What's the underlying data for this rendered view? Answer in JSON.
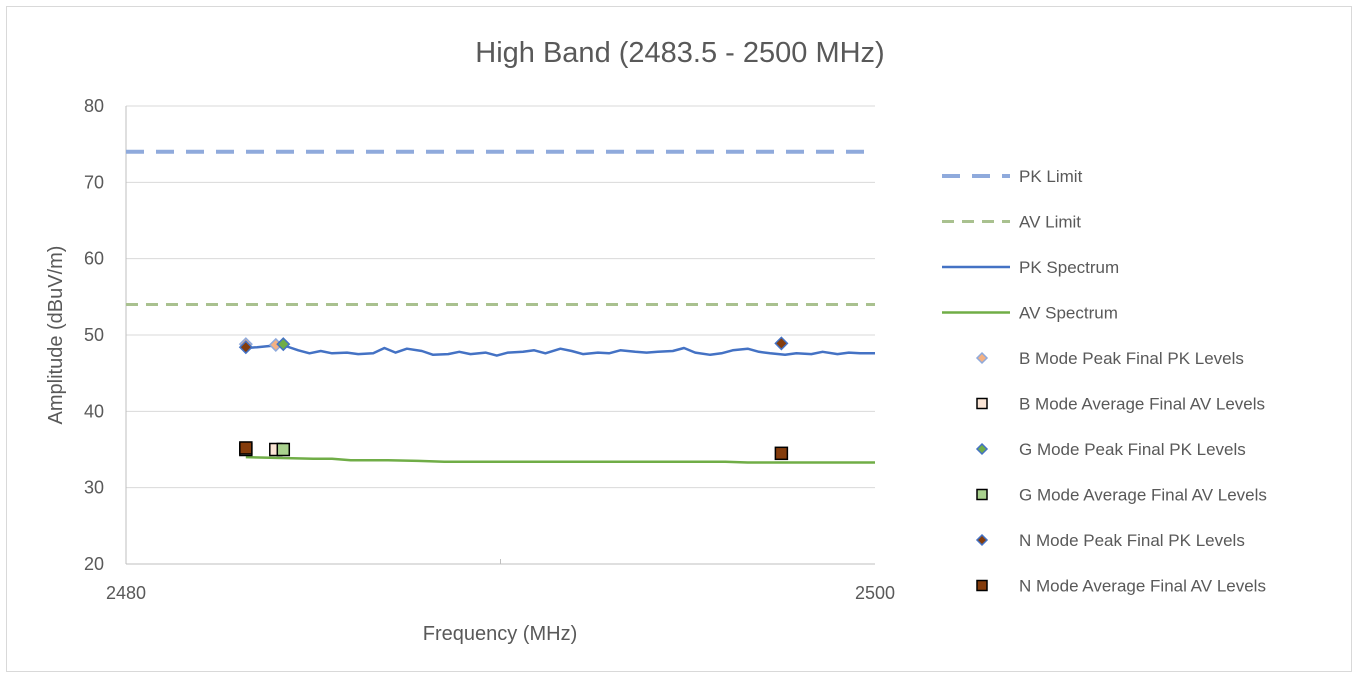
{
  "chart_data": {
    "type": "line",
    "title": "High Band (2483.5 - 2500 MHz)",
    "xlabel": "Frequency (MHz)",
    "ylabel": "Amplitude (dBuV/m)",
    "xlim": [
      2480,
      2500
    ],
    "ylim": [
      20,
      80
    ],
    "x_ticks": [
      "2480",
      "2500"
    ],
    "y_ticks": [
      "20",
      "30",
      "40",
      "50",
      "60",
      "70",
      "80"
    ],
    "grid": "horizontal",
    "legend_position": "right",
    "colors": {
      "pk_limit": "#8faadc",
      "av_limit": "#a9c18f",
      "pk_spectrum": "#4472c4",
      "av_spectrum": "#70ad47",
      "b_peak": "#f4b183",
      "b_avg": "#fbe5d6",
      "g_peak": "#70ad47",
      "g_avg": "#a9d18e",
      "n_peak": "#843c0c",
      "n_avg": "#843c0c"
    },
    "series": [
      {
        "name": "PK Limit",
        "kind": "dashed-line",
        "x": [
          2480,
          2500
        ],
        "y": [
          74,
          74
        ]
      },
      {
        "name": "AV Limit",
        "kind": "dashed-line",
        "x": [
          2480,
          2500
        ],
        "y": [
          54,
          54
        ]
      },
      {
        "name": "PK Spectrum",
        "kind": "line",
        "x": [
          2483.2,
          2483.5,
          2483.9,
          2484.3,
          2484.6,
          2484.9,
          2485.2,
          2485.5,
          2485.9,
          2486.2,
          2486.6,
          2486.9,
          2487.2,
          2487.5,
          2487.9,
          2488.2,
          2488.6,
          2488.9,
          2489.2,
          2489.6,
          2489.9,
          2490.2,
          2490.6,
          2490.9,
          2491.2,
          2491.6,
          2491.9,
          2492.2,
          2492.6,
          2492.9,
          2493.2,
          2493.6,
          2493.9,
          2494.2,
          2494.6,
          2494.9,
          2495.2,
          2495.6,
          2495.9,
          2496.2,
          2496.6,
          2496.9,
          2497.2,
          2497.6,
          2497.9,
          2498.3,
          2498.6,
          2499.0,
          2499.3,
          2499.6,
          2500.0
        ],
        "y": [
          48.3,
          48.4,
          48.6,
          48.5,
          48.0,
          47.6,
          47.9,
          47.6,
          47.7,
          47.5,
          47.6,
          48.3,
          47.7,
          48.2,
          47.9,
          47.4,
          47.5,
          47.8,
          47.5,
          47.7,
          47.3,
          47.7,
          47.8,
          48.0,
          47.6,
          48.2,
          47.9,
          47.5,
          47.7,
          47.6,
          48.0,
          47.8,
          47.7,
          47.8,
          47.9,
          48.3,
          47.7,
          47.4,
          47.6,
          48.0,
          48.2,
          47.8,
          47.6,
          47.4,
          47.6,
          47.5,
          47.8,
          47.5,
          47.7,
          47.6,
          47.6
        ]
      },
      {
        "name": "AV Spectrum",
        "kind": "line",
        "x": [
          2483.2,
          2484.0,
          2485.0,
          2485.5,
          2486.0,
          2487.0,
          2487.8,
          2488.5,
          2490.0,
          2492.0,
          2494.0,
          2496.0,
          2496.6,
          2497.0,
          2498.0,
          2499.0,
          2500.0
        ],
        "y": [
          34.0,
          33.9,
          33.8,
          33.8,
          33.6,
          33.6,
          33.5,
          33.4,
          33.4,
          33.4,
          33.4,
          33.4,
          33.3,
          33.3,
          33.3,
          33.3,
          33.3
        ]
      },
      {
        "name": "B Mode Peak Final PK Levels",
        "kind": "diamond",
        "x": [
          2483.2,
          2484.0
        ],
        "y": [
          48.8,
          48.7
        ]
      },
      {
        "name": "B Mode Average Final AV Levels",
        "kind": "square",
        "x": [
          2483.2,
          2484.0
        ],
        "y": [
          35.0,
          35.0
        ]
      },
      {
        "name": "G Mode Peak Final PK Levels",
        "kind": "diamond",
        "x": [
          2484.2
        ],
        "y": [
          48.8
        ]
      },
      {
        "name": "G Mode Average Final AV Levels",
        "kind": "square",
        "x": [
          2484.2
        ],
        "y": [
          35.0
        ]
      },
      {
        "name": "N Mode Peak Final PK Levels",
        "kind": "diamond",
        "x": [
          2483.2,
          2497.5
        ],
        "y": [
          48.4,
          48.9
        ]
      },
      {
        "name": "N Mode Average Final AV Levels",
        "kind": "square",
        "x": [
          2483.2,
          2497.5
        ],
        "y": [
          35.2,
          34.5
        ]
      }
    ]
  }
}
